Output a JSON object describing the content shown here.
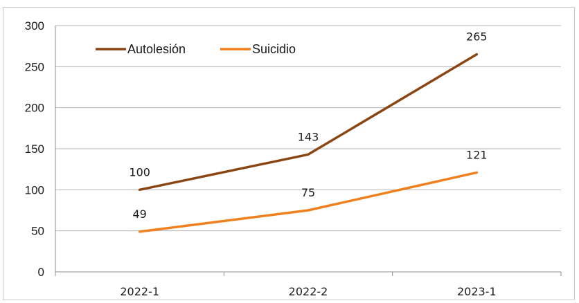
{
  "chart_data": {
    "type": "line",
    "categories": [
      "2022-1",
      "2022-2",
      "2023-1"
    ],
    "series": [
      {
        "name": "Autolesión",
        "values": [
          100,
          143,
          265
        ],
        "color": "#8B4513"
      },
      {
        "name": "Suicidio",
        "values": [
          49,
          75,
          121
        ],
        "color": "#F0801E"
      }
    ],
    "title": "",
    "xlabel": "",
    "ylabel": "",
    "ylim": [
      0,
      300
    ],
    "yticks": [
      0,
      50,
      100,
      150,
      200,
      250,
      300
    ],
    "grid": "horizontal",
    "legend": "top-left",
    "data_labels": true
  }
}
